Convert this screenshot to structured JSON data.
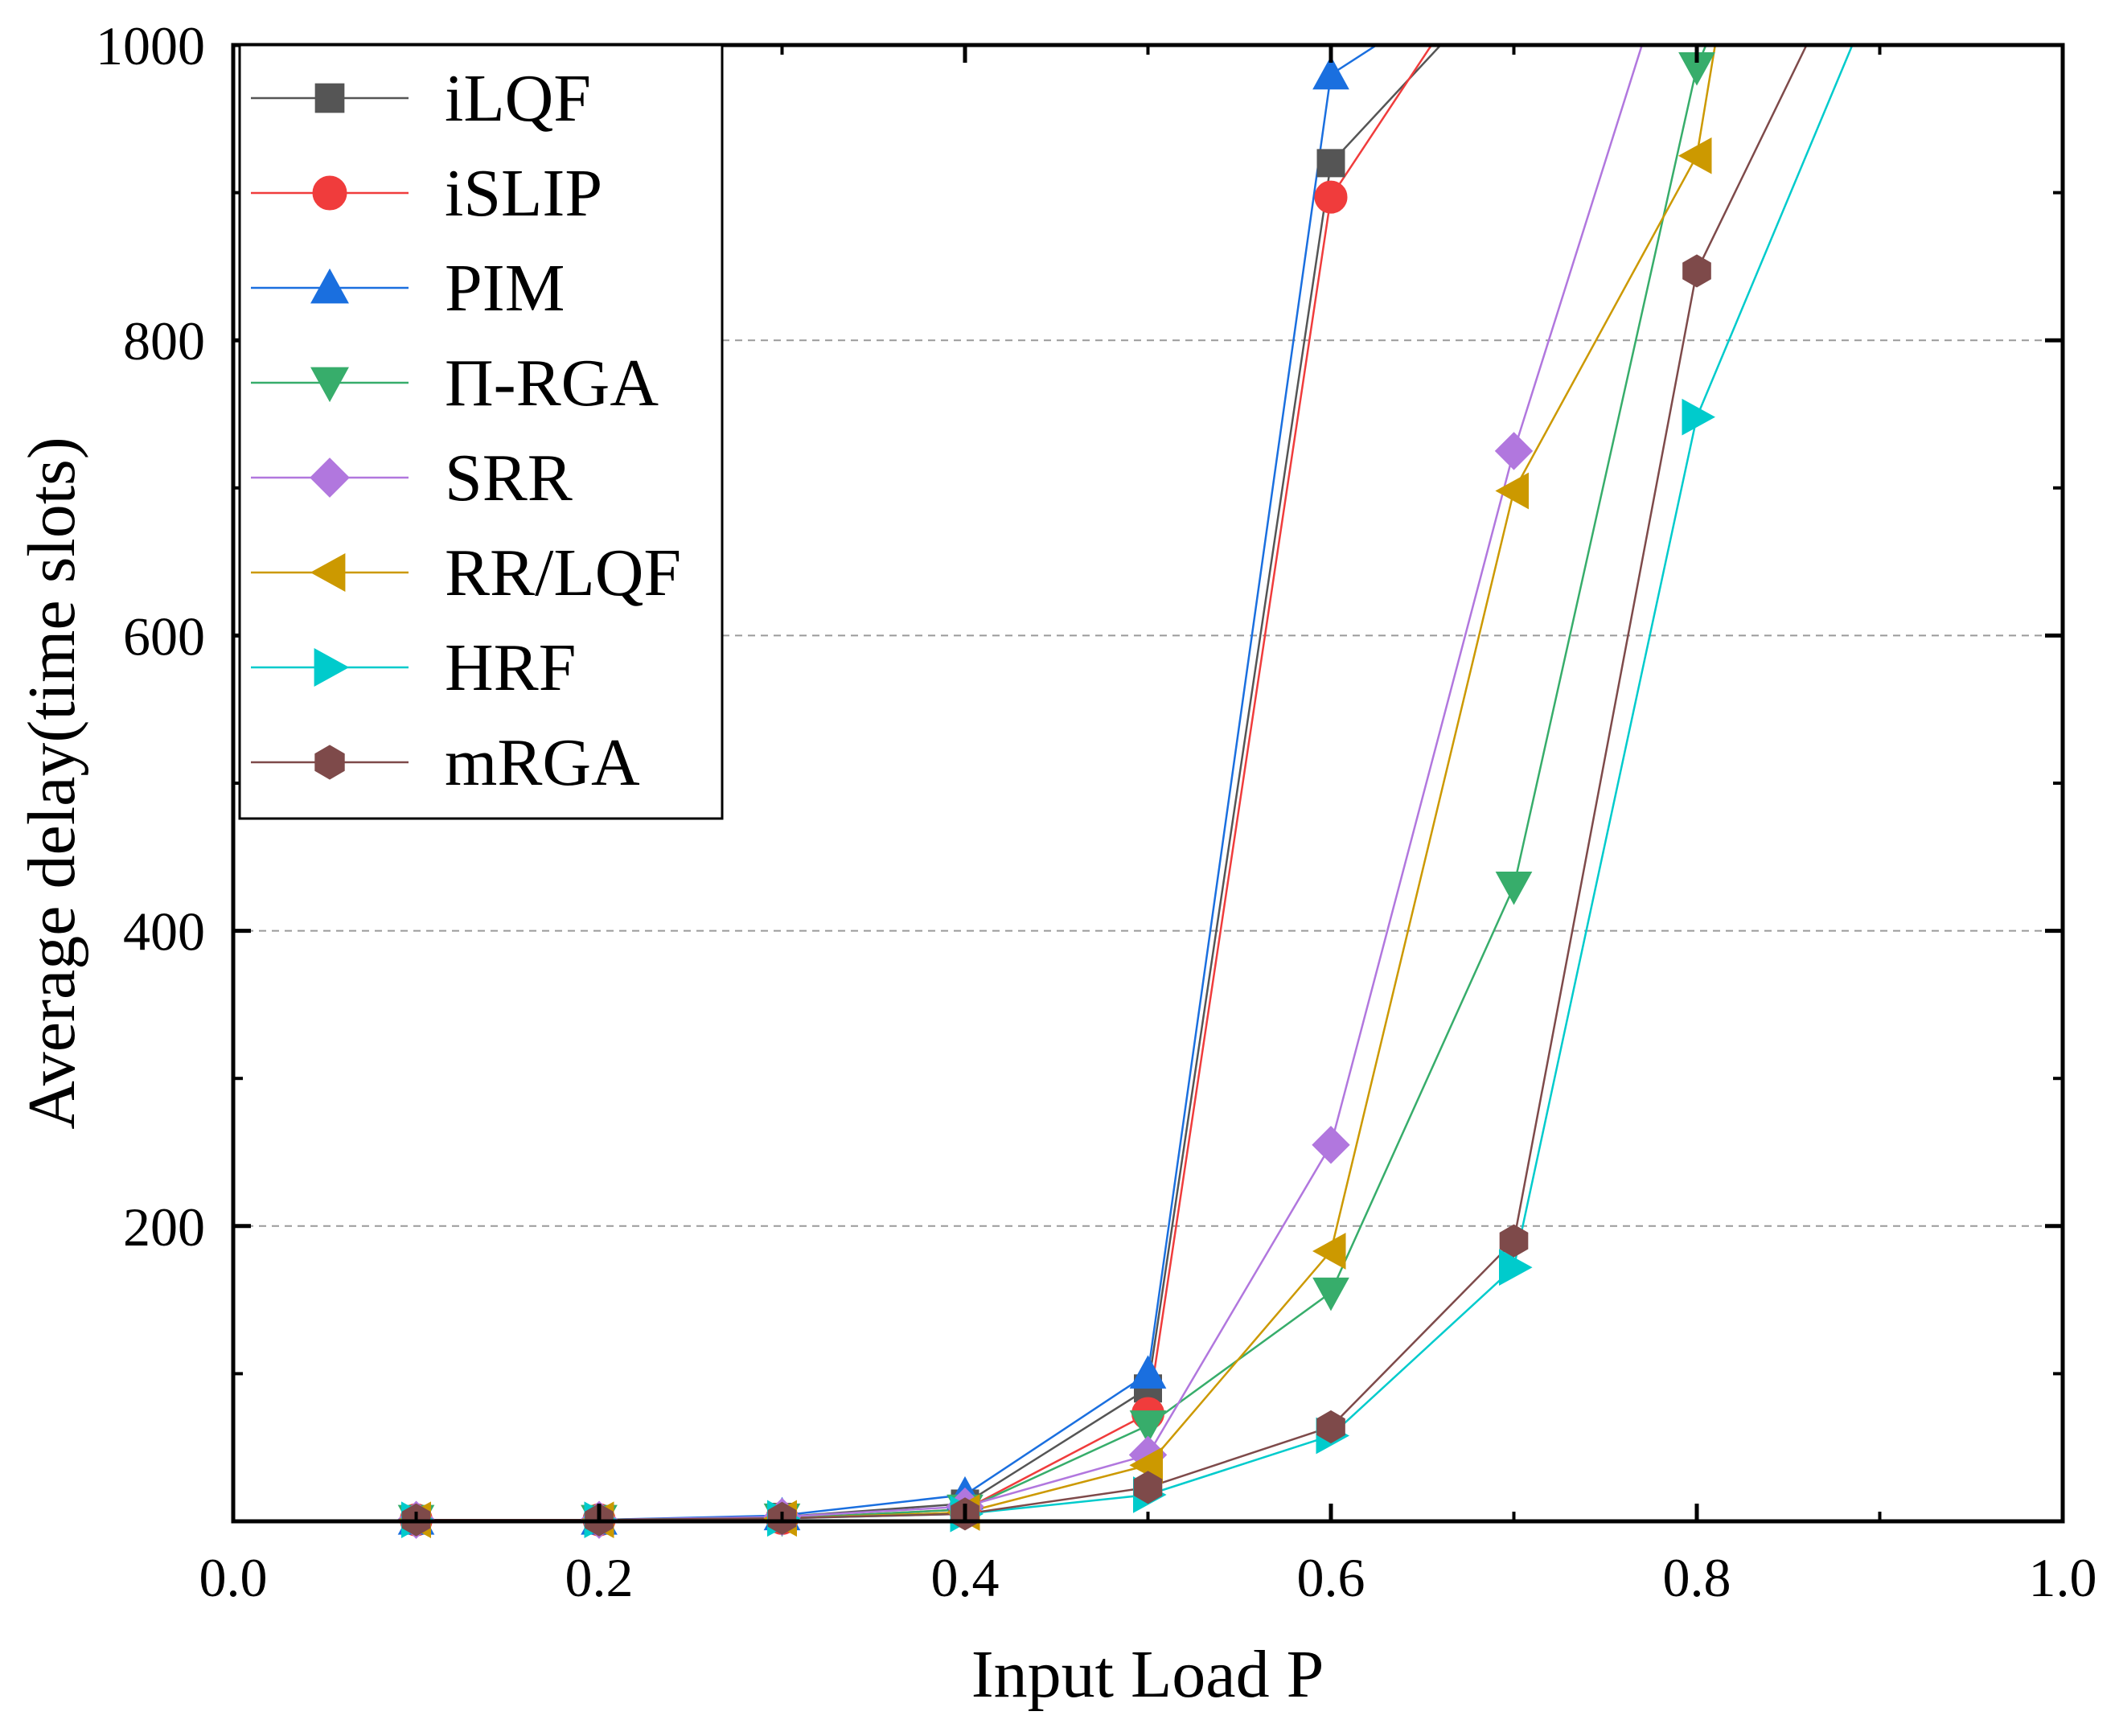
{
  "chart_data": {
    "type": "line",
    "title": "",
    "xlabel": "Input Load P",
    "ylabel": "Average delay(time slots)",
    "xlim": [
      0.0,
      1.0
    ],
    "ylim": [
      0,
      1000
    ],
    "x_ticks": [
      0.0,
      0.2,
      0.4,
      0.6,
      0.8,
      1.0
    ],
    "x_tick_labels": [
      "0.0",
      "0.2",
      "0.4",
      "0.6",
      "0.8",
      "1.0"
    ],
    "y_ticks": [
      200,
      400,
      600,
      800,
      1000
    ],
    "y_tick_labels": [
      "200",
      "400",
      "600",
      "800",
      "1000"
    ],
    "grid": "horizontal dashed at 200, 400, 600, 800",
    "legend_position": "top-left",
    "series": [
      {
        "name": "iLQF",
        "color": "#555555",
        "marker": "square",
        "x": [
          0.1,
          0.2,
          0.3,
          0.4,
          0.5,
          0.6,
          0.66
        ],
        "y": [
          1,
          1,
          3,
          12,
          90,
          920,
          1000
        ]
      },
      {
        "name": "iSLIP",
        "color": "#f03c3c",
        "marker": "circle",
        "x": [
          0.1,
          0.2,
          0.3,
          0.4,
          0.5,
          0.6,
          0.655
        ],
        "y": [
          1,
          1,
          2,
          8,
          73,
          897,
          1000
        ]
      },
      {
        "name": "PIM",
        "color": "#1a6fdf",
        "marker": "triangle-up",
        "x": [
          0.1,
          0.2,
          0.3,
          0.4,
          0.5,
          0.6,
          0.625
        ],
        "y": [
          1,
          1,
          4,
          18,
          100,
          980,
          1000
        ]
      },
      {
        "name": "Π-RGA",
        "color": "#37ad6b",
        "marker": "triangle-down",
        "x": [
          0.1,
          0.2,
          0.3,
          0.4,
          0.5,
          0.6,
          0.7,
          0.8,
          0.805
        ],
        "y": [
          1,
          1,
          2,
          8,
          65,
          155,
          430,
          985,
          1000
        ]
      },
      {
        "name": "SRR",
        "color": "#b177de",
        "marker": "diamond",
        "x": [
          0.1,
          0.2,
          0.3,
          0.4,
          0.5,
          0.6,
          0.7,
          0.77
        ],
        "y": [
          1,
          1,
          3,
          10,
          45,
          255,
          725,
          1000
        ]
      },
      {
        "name": "RR/LQF",
        "color": "#cc9900",
        "marker": "triangle-left",
        "x": [
          0.1,
          0.2,
          0.3,
          0.4,
          0.5,
          0.6,
          0.7,
          0.8,
          0.81
        ],
        "y": [
          1,
          1,
          2,
          6,
          38,
          183,
          698,
          925,
          1000
        ]
      },
      {
        "name": "HRF",
        "color": "#00cbcc",
        "marker": "triangle-right",
        "x": [
          0.1,
          0.2,
          0.3,
          0.4,
          0.5,
          0.6,
          0.7,
          0.8,
          0.885
        ],
        "y": [
          1,
          1,
          2,
          5,
          18,
          58,
          172,
          748,
          1000
        ]
      },
      {
        "name": "mRGA",
        "color": "#7e4a4a",
        "marker": "hexagon",
        "x": [
          0.1,
          0.2,
          0.3,
          0.4,
          0.5,
          0.6,
          0.7,
          0.8,
          0.86
        ],
        "y": [
          1,
          1,
          2,
          5,
          23,
          64,
          190,
          847,
          1000
        ]
      }
    ]
  }
}
